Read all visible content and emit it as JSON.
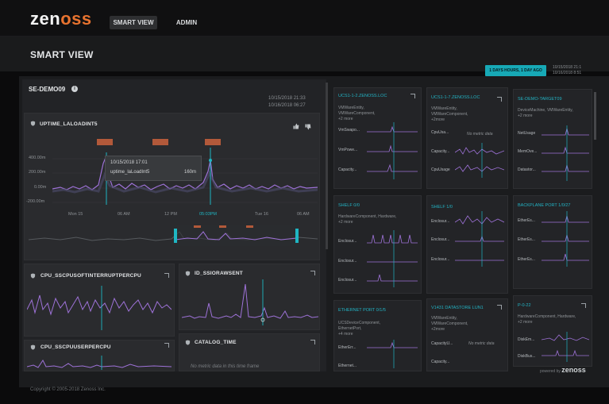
{
  "app": {
    "logo_prefix": "zen",
    "logo_oo": "oss",
    "tabs": [
      "SMART VIEW",
      "ADMIN"
    ],
    "page_title": "SMART VIEW",
    "range_button": "1 DAYS HOURS, 1 DAY AGO",
    "range_times": [
      "10/15/2018 21:1",
      "10/16/2018 8:51"
    ],
    "accent": "#17a9b6",
    "brand_orange": "#e8732f"
  },
  "dashboard": {
    "title": "SE-DEMO09",
    "times": [
      "10/15/2018 21:33",
      "10/16/2018 06:27"
    ],
    "main_chart": {
      "title": "UPTIME_LALOADINT5",
      "y_ticks": [
        "400.00m",
        "200.00m",
        "0.00m",
        "-200.00m"
      ],
      "x_ticks": [
        "Mon 15",
        "06 AM",
        "12 PM",
        "05:03PM",
        "Tue 16",
        "06 AM"
      ],
      "tooltip_time": "10/15/2018 17:01",
      "tooltip_series": "uptime_laLoadInt5",
      "tooltip_value": "160m"
    },
    "cards": [
      {
        "title": "CPU_SSCPUSOFTINTERRUPTPERCPU"
      },
      {
        "title": "ID_SSIORAWSENT"
      },
      {
        "title": "CPU_SSCPUUSERPERCPU"
      },
      {
        "title": "CATALOG_TIME"
      }
    ],
    "empty_message": "No metric data in this time frame"
  },
  "tiles": [
    {
      "title": "UCS1-1-2.ZENOSS.LOC",
      "sub": [
        "VMWareEntity,",
        "VMWareComponent,",
        "+2 more"
      ],
      "rows": [
        "VmSwapo...",
        "VmPowe...",
        "Capacity..."
      ]
    },
    {
      "title": "UCS1-1-7.ZENOSS.LOC",
      "sub": [
        "VMWareEntity,",
        "VMWareComponent,",
        "+2more"
      ],
      "rows": [
        "CpuUsa...",
        "Capacity...",
        "CpuUsage"
      ],
      "note": "No metric data"
    },
    {
      "title": "SE-DEMO-TARGET09",
      "sub": [
        "DeviceMachine, VMWareEntity,",
        "+2 more"
      ],
      "rows": [
        "NetUsage",
        "MemOve...",
        "Datastor..."
      ]
    },
    {
      "title": "SHELF 0/0",
      "sub": [
        "HardwareComponent, Hardware,",
        "+2 more"
      ],
      "rows": [
        "Enclosur...",
        "Enclosur...",
        "Enclosur..."
      ]
    },
    {
      "title": "SHELF 1/0",
      "sub": [],
      "rows": [
        "Enclosur...",
        "Enclosur...",
        "Enclosur..."
      ]
    },
    {
      "title": "BACKPLANE PORT 1/0/27",
      "sub": [],
      "rows": [
        "EtherEs...",
        "EtherEs...",
        "EtherEs..."
      ]
    },
    {
      "title": "ETHERNET PORT 0/1/5",
      "sub": [
        "UCSDeviceComponent,",
        "EthernetPort,",
        "+4 more"
      ],
      "rows": [
        "EtherErr...",
        "Ethernet..."
      ]
    },
    {
      "title": "V1431 DATASTORE LUN1",
      "sub": [
        "VMWareEntity,",
        "VMWareComponent,",
        "+2more"
      ],
      "rows": [
        "CapacityU...",
        "Capacity..."
      ],
      "note": "No metric data"
    },
    {
      "title": "P-0-22",
      "sub": [
        "HardwareComponent, Hardware,",
        "+2 more"
      ],
      "rows": [
        "DiskEm...",
        "DiskBus..."
      ]
    }
  ],
  "footer": {
    "copyright": "Copyright © 2005-2018 Zenoss Inc.",
    "powered_by": "powered by",
    "powered_brand": "zenoss"
  }
}
